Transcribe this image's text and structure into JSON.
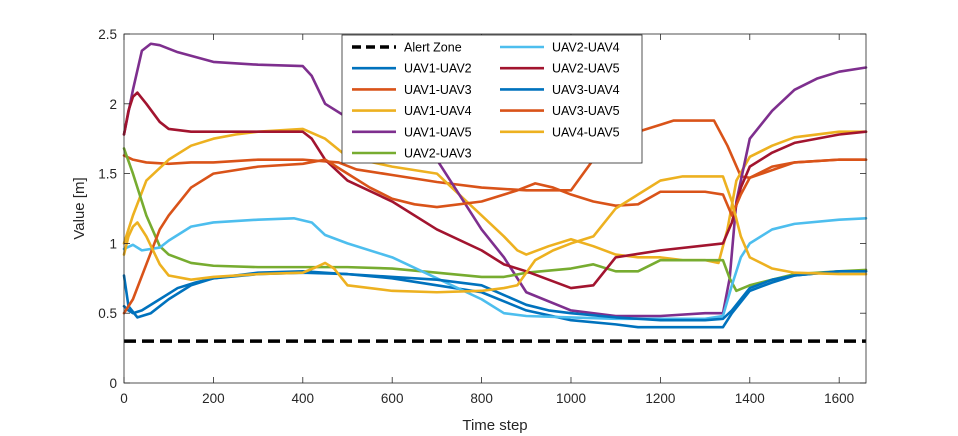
{
  "chart_data": {
    "type": "line",
    "title": "",
    "xlabel": "Time step",
    "ylabel": "Value [m]",
    "xlim": [
      0,
      1660
    ],
    "ylim": [
      0,
      2.5
    ],
    "xticks": [
      0,
      200,
      400,
      600,
      800,
      1000,
      1200,
      1400,
      1600
    ],
    "yticks": [
      0,
      0.5,
      1,
      1.5,
      2,
      2.5
    ],
    "xtick_labels": [
      "0",
      "200",
      "400",
      "600",
      "800",
      "1000",
      "1200",
      "1400",
      "1600"
    ],
    "ytick_labels": [
      "0",
      "0.5",
      "1",
      "1.5",
      "2",
      "2.5"
    ],
    "grid": false,
    "legend_position": "top-center",
    "series": [
      {
        "name": "Alert Zone",
        "color": "#000000",
        "style": "dashed",
        "x": [
          0,
          1660
        ],
        "y": [
          0.3,
          0.3
        ]
      },
      {
        "name": "UAV1-UAV2",
        "color": "#0072BD",
        "style": "solid",
        "x": [
          0,
          10,
          30,
          60,
          100,
          150,
          200,
          300,
          400,
          500,
          600,
          700,
          800,
          900,
          1000,
          1100,
          1150,
          1200,
          1300,
          1340,
          1360,
          1400,
          1450,
          1500,
          1600,
          1660
        ],
        "y": [
          0.77,
          0.55,
          0.47,
          0.5,
          0.6,
          0.7,
          0.75,
          0.79,
          0.8,
          0.78,
          0.75,
          0.7,
          0.65,
          0.52,
          0.45,
          0.42,
          0.4,
          0.4,
          0.4,
          0.4,
          0.5,
          0.66,
          0.72,
          0.77,
          0.8,
          0.8
        ]
      },
      {
        "name": "UAV1-UAV3",
        "color": "#D95319",
        "style": "solid",
        "x": [
          0,
          20,
          50,
          100,
          150,
          200,
          300,
          400,
          480,
          520,
          600,
          700,
          800,
          900,
          1000,
          1050,
          1100,
          1150,
          1200,
          1230,
          1320,
          1350,
          1380,
          1400,
          1500,
          1600,
          1660
        ],
        "y": [
          1.63,
          1.6,
          1.58,
          1.57,
          1.58,
          1.58,
          1.6,
          1.6,
          1.58,
          1.53,
          1.49,
          1.44,
          1.4,
          1.38,
          1.38,
          1.6,
          1.75,
          1.8,
          1.85,
          1.88,
          1.88,
          1.7,
          1.48,
          1.47,
          1.58,
          1.6,
          1.6
        ]
      },
      {
        "name": "UAV1-UAV4",
        "color": "#EDB120",
        "style": "solid",
        "x": [
          0,
          20,
          50,
          100,
          150,
          200,
          250,
          300,
          400,
          450,
          500,
          600,
          700,
          750,
          800,
          850,
          880,
          900,
          950,
          1000,
          1050,
          1100,
          1150,
          1200,
          1250,
          1300,
          1330,
          1350,
          1370,
          1400,
          1450,
          1500,
          1600,
          1660
        ],
        "y": [
          1.0,
          1.2,
          1.45,
          1.6,
          1.7,
          1.75,
          1.78,
          1.8,
          1.82,
          1.75,
          1.62,
          1.55,
          1.5,
          1.35,
          1.2,
          1.05,
          0.95,
          0.92,
          0.98,
          1.03,
          0.98,
          0.92,
          0.9,
          0.9,
          0.88,
          0.88,
          0.86,
          1.1,
          1.45,
          1.62,
          1.7,
          1.76,
          1.8,
          1.8
        ]
      },
      {
        "name": "UAV1-UAV5",
        "color": "#7E2F8E",
        "style": "solid",
        "x": [
          0,
          20,
          40,
          60,
          80,
          120,
          200,
          300,
          400,
          420,
          450,
          500,
          600,
          700,
          750,
          800,
          850,
          900,
          1000,
          1100,
          1200,
          1300,
          1340,
          1355,
          1370,
          1400,
          1450,
          1500,
          1550,
          1600,
          1660
        ],
        "y": [
          1.78,
          2.1,
          2.38,
          2.43,
          2.42,
          2.37,
          2.3,
          2.28,
          2.27,
          2.2,
          2.0,
          1.9,
          1.78,
          1.6,
          1.35,
          1.1,
          0.9,
          0.65,
          0.52,
          0.48,
          0.48,
          0.5,
          0.5,
          0.75,
          1.3,
          1.75,
          1.95,
          2.1,
          2.18,
          2.23,
          2.26
        ]
      },
      {
        "name": "UAV2-UAV3",
        "color": "#77AC30",
        "style": "solid",
        "x": [
          0,
          20,
          50,
          80,
          100,
          150,
          200,
          300,
          400,
          500,
          600,
          700,
          800,
          850,
          900,
          1000,
          1050,
          1100,
          1150,
          1200,
          1340,
          1355,
          1370,
          1400,
          1500,
          1600,
          1660
        ],
        "y": [
          1.68,
          1.5,
          1.2,
          0.98,
          0.92,
          0.86,
          0.84,
          0.83,
          0.83,
          0.83,
          0.82,
          0.79,
          0.76,
          0.76,
          0.79,
          0.82,
          0.85,
          0.8,
          0.8,
          0.88,
          0.88,
          0.75,
          0.66,
          0.7,
          0.78,
          0.8,
          0.81
        ]
      },
      {
        "name": "UAV2-UAV4",
        "color": "#4DBEEE",
        "style": "solid",
        "x": [
          0,
          20,
          40,
          80,
          100,
          150,
          200,
          300,
          380,
          420,
          450,
          500,
          600,
          700,
          800,
          850,
          900,
          1000,
          1100,
          1150,
          1200,
          1300,
          1340,
          1360,
          1380,
          1400,
          1450,
          1500,
          1600,
          1660
        ],
        "y": [
          0.96,
          0.99,
          0.95,
          0.97,
          1.02,
          1.12,
          1.15,
          1.17,
          1.18,
          1.15,
          1.06,
          1.0,
          0.9,
          0.75,
          0.6,
          0.5,
          0.48,
          0.47,
          0.46,
          0.46,
          0.46,
          0.46,
          0.48,
          0.7,
          0.9,
          1.0,
          1.1,
          1.14,
          1.17,
          1.18
        ]
      },
      {
        "name": "UAV2-UAV5",
        "color": "#A2142F",
        "style": "solid",
        "x": [
          0,
          10,
          20,
          30,
          50,
          80,
          100,
          150,
          200,
          300,
          400,
          420,
          450,
          500,
          600,
          700,
          800,
          850,
          900,
          1000,
          1050,
          1100,
          1200,
          1340,
          1360,
          1380,
          1400,
          1450,
          1500,
          1600,
          1660
        ],
        "y": [
          1.78,
          1.95,
          2.05,
          2.08,
          2.0,
          1.87,
          1.82,
          1.8,
          1.8,
          1.8,
          1.8,
          1.75,
          1.6,
          1.45,
          1.3,
          1.1,
          0.95,
          0.85,
          0.8,
          0.68,
          0.7,
          0.9,
          0.95,
          1.0,
          1.15,
          1.4,
          1.55,
          1.65,
          1.72,
          1.78,
          1.8
        ]
      },
      {
        "name": "UAV3-UAV4",
        "color": "#0072BD",
        "style": "solid",
        "x": [
          0,
          10,
          20,
          40,
          80,
          120,
          160,
          200,
          300,
          400,
          500,
          600,
          700,
          800,
          850,
          900,
          950,
          1000,
          1100,
          1200,
          1300,
          1340,
          1360,
          1380,
          1400,
          1450,
          1500,
          1600,
          1660
        ],
        "y": [
          0.55,
          0.52,
          0.5,
          0.52,
          0.6,
          0.68,
          0.72,
          0.75,
          0.78,
          0.79,
          0.78,
          0.76,
          0.74,
          0.7,
          0.63,
          0.56,
          0.52,
          0.5,
          0.47,
          0.45,
          0.45,
          0.46,
          0.52,
          0.6,
          0.68,
          0.74,
          0.77,
          0.8,
          0.8
        ]
      },
      {
        "name": "UAV3-UAV5",
        "color": "#D95319",
        "style": "solid",
        "x": [
          0,
          20,
          50,
          80,
          100,
          150,
          200,
          300,
          400,
          450,
          500,
          550,
          600,
          650,
          700,
          800,
          880,
          920,
          960,
          1000,
          1050,
          1100,
          1150,
          1200,
          1300,
          1340,
          1360,
          1380,
          1400,
          1450,
          1500,
          1600,
          1660
        ],
        "y": [
          0.5,
          0.6,
          0.85,
          1.1,
          1.2,
          1.4,
          1.5,
          1.55,
          1.57,
          1.6,
          1.5,
          1.4,
          1.32,
          1.28,
          1.26,
          1.3,
          1.38,
          1.43,
          1.4,
          1.35,
          1.3,
          1.27,
          1.28,
          1.37,
          1.37,
          1.35,
          1.2,
          1.35,
          1.47,
          1.55,
          1.58,
          1.6,
          1.6
        ]
      },
      {
        "name": "UAV4-UAV5",
        "color": "#EDB120",
        "style": "solid",
        "x": [
          0,
          10,
          20,
          30,
          50,
          80,
          100,
          150,
          200,
          300,
          400,
          430,
          450,
          470,
          500,
          600,
          700,
          800,
          850,
          880,
          920,
          960,
          1000,
          1050,
          1100,
          1150,
          1200,
          1250,
          1340,
          1360,
          1380,
          1400,
          1450,
          1500,
          1600,
          1660
        ],
        "y": [
          0.92,
          1.05,
          1.12,
          1.15,
          1.05,
          0.85,
          0.77,
          0.74,
          0.76,
          0.78,
          0.79,
          0.83,
          0.86,
          0.82,
          0.7,
          0.66,
          0.65,
          0.66,
          0.68,
          0.7,
          0.88,
          0.95,
          1.0,
          1.05,
          1.25,
          1.35,
          1.45,
          1.48,
          1.48,
          1.3,
          1.05,
          0.9,
          0.82,
          0.79,
          0.78,
          0.78
        ]
      }
    ]
  }
}
